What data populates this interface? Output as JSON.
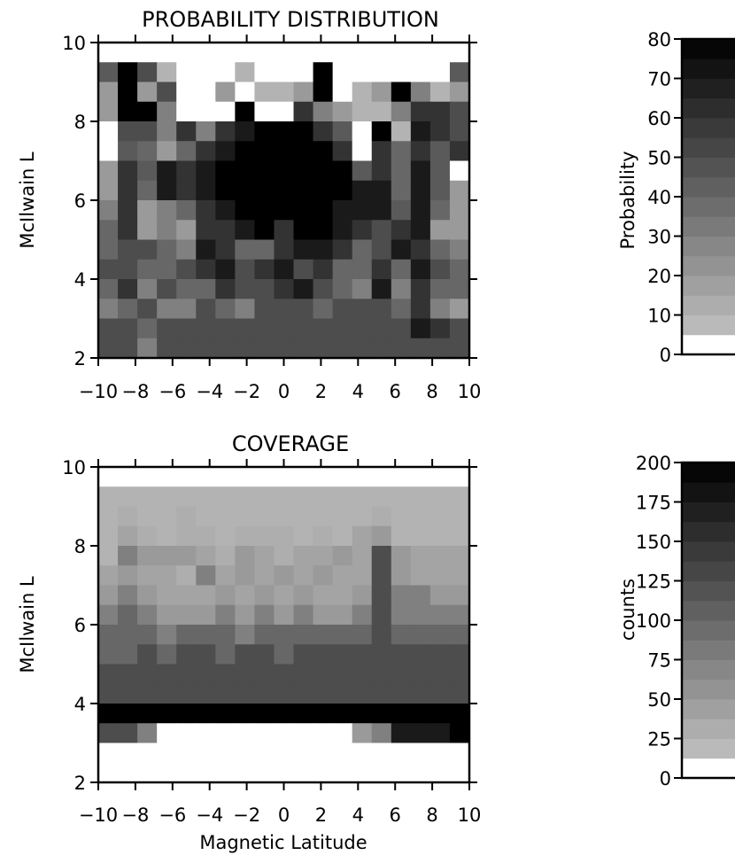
{
  "chart_data": [
    {
      "type": "heatmap",
      "title": "PROBABILITY DISTRIBUTION",
      "xlabel": "",
      "ylabel": "McIlwain L",
      "xlim": [
        -10,
        10
      ],
      "ylim": [
        2,
        10
      ],
      "x_ticks": [
        "-10",
        "-8",
        "-6",
        "-4",
        "-2",
        "0",
        "2",
        "4",
        "6",
        "8",
        "10"
      ],
      "y_ticks": [
        "2",
        "4",
        "6",
        "8",
        "10"
      ],
      "x_bin_edges": [
        -10,
        10
      ],
      "x_bins": 19,
      "y_bin_edges": [
        2,
        9.5
      ],
      "y_bins": 15,
      "grid": [
        [
          45,
          80,
          50,
          10,
          0,
          0,
          0,
          10,
          0,
          0,
          0,
          80,
          0,
          0,
          0,
          0,
          0,
          0,
          45
        ],
        [
          20,
          80,
          20,
          50,
          0,
          0,
          20,
          0,
          10,
          10,
          20,
          80,
          0,
          10,
          20,
          80,
          30,
          10,
          20
        ],
        [
          20,
          80,
          80,
          30,
          0,
          0,
          0,
          80,
          0,
          0,
          60,
          30,
          20,
          10,
          10,
          30,
          60,
          60,
          50
        ],
        [
          0,
          50,
          50,
          30,
          60,
          30,
          60,
          70,
          80,
          80,
          80,
          60,
          45,
          0,
          80,
          10,
          70,
          60,
          50
        ],
        [
          0,
          45,
          40,
          20,
          40,
          60,
          70,
          80,
          80,
          80,
          80,
          80,
          60,
          0,
          60,
          40,
          60,
          45,
          60
        ],
        [
          20,
          60,
          45,
          70,
          60,
          70,
          80,
          80,
          80,
          80,
          80,
          80,
          80,
          45,
          60,
          40,
          70,
          45,
          0
        ],
        [
          20,
          60,
          40,
          70,
          60,
          70,
          80,
          80,
          80,
          80,
          80,
          80,
          80,
          70,
          70,
          40,
          70,
          45,
          20
        ],
        [
          30,
          60,
          20,
          30,
          40,
          60,
          70,
          80,
          80,
          80,
          80,
          80,
          70,
          70,
          70,
          45,
          70,
          40,
          20
        ],
        [
          40,
          60,
          20,
          30,
          20,
          60,
          60,
          70,
          80,
          60,
          80,
          80,
          70,
          60,
          50,
          60,
          70,
          20,
          20
        ],
        [
          40,
          50,
          50,
          40,
          30,
          70,
          60,
          40,
          40,
          60,
          70,
          70,
          60,
          40,
          50,
          70,
          60,
          40,
          30
        ],
        [
          50,
          50,
          40,
          40,
          50,
          60,
          70,
          50,
          60,
          70,
          50,
          60,
          40,
          40,
          60,
          40,
          70,
          50,
          40
        ],
        [
          40,
          60,
          30,
          50,
          40,
          40,
          60,
          50,
          50,
          60,
          70,
          50,
          40,
          30,
          70,
          30,
          60,
          40,
          40
        ],
        [
          30,
          40,
          50,
          30,
          30,
          50,
          40,
          30,
          50,
          50,
          50,
          40,
          50,
          50,
          50,
          40,
          60,
          30,
          20
        ],
        [
          50,
          50,
          40,
          50,
          50,
          50,
          50,
          50,
          50,
          50,
          50,
          50,
          50,
          50,
          50,
          50,
          70,
          60,
          50
        ],
        [
          50,
          50,
          30,
          50,
          50,
          50,
          50,
          50,
          50,
          50,
          50,
          50,
          50,
          50,
          50,
          50,
          50,
          50,
          50
        ]
      ],
      "colorbar": {
        "label": "Probability",
        "ticks": [
          "0",
          "10",
          "20",
          "30",
          "40",
          "50",
          "60",
          "70",
          "80"
        ],
        "range": [
          0,
          80
        ],
        "levels": [
          0,
          5,
          10,
          15,
          20,
          25,
          30,
          35,
          40,
          45,
          50,
          55,
          60,
          65,
          70,
          75,
          80
        ]
      }
    },
    {
      "type": "heatmap",
      "title": "COVERAGE",
      "xlabel": "Magnetic Latitude",
      "ylabel": "McIlwain L",
      "xlim": [
        -10,
        10
      ],
      "ylim": [
        2,
        10
      ],
      "x_ticks": [
        "-10",
        "-8",
        "-6",
        "-4",
        "-2",
        "0",
        "2",
        "4",
        "6",
        "8",
        "10"
      ],
      "y_ticks": [
        "2",
        "4",
        "6",
        "8",
        "10"
      ],
      "x_bin_edges": [
        -10,
        10
      ],
      "x_bins": 19,
      "y_bin_edges": [
        2.5,
        9.5
      ],
      "y_bins": 14,
      "grid": [
        [
          25,
          25,
          25,
          25,
          25,
          25,
          25,
          25,
          25,
          25,
          25,
          25,
          25,
          25,
          25,
          25,
          25,
          25,
          25
        ],
        [
          25,
          30,
          25,
          25,
          30,
          25,
          25,
          25,
          25,
          25,
          25,
          25,
          25,
          25,
          30,
          25,
          25,
          25,
          25
        ],
        [
          25,
          40,
          30,
          25,
          30,
          30,
          25,
          30,
          30,
          30,
          25,
          30,
          25,
          40,
          50,
          25,
          25,
          25,
          25
        ],
        [
          25,
          75,
          50,
          50,
          50,
          40,
          30,
          50,
          40,
          30,
          40,
          40,
          50,
          40,
          125,
          50,
          40,
          40,
          40
        ],
        [
          40,
          50,
          40,
          40,
          30,
          75,
          40,
          50,
          40,
          50,
          40,
          50,
          40,
          40,
          125,
          50,
          40,
          40,
          40
        ],
        [
          50,
          75,
          50,
          40,
          40,
          40,
          50,
          40,
          50,
          40,
          50,
          40,
          40,
          50,
          125,
          75,
          75,
          50,
          50
        ],
        [
          75,
          100,
          75,
          50,
          50,
          50,
          75,
          50,
          75,
          50,
          75,
          50,
          50,
          75,
          125,
          75,
          75,
          75,
          75
        ],
        [
          100,
          100,
          100,
          75,
          100,
          100,
          100,
          75,
          100,
          100,
          100,
          100,
          100,
          100,
          125,
          100,
          100,
          100,
          100
        ],
        [
          100,
          100,
          125,
          100,
          125,
          125,
          100,
          125,
          125,
          100,
          125,
          125,
          125,
          125,
          125,
          125,
          125,
          125,
          125
        ],
        [
          125,
          125,
          125,
          125,
          125,
          125,
          125,
          125,
          125,
          125,
          125,
          125,
          125,
          125,
          125,
          125,
          125,
          125,
          125
        ],
        [
          125,
          125,
          125,
          125,
          125,
          125,
          125,
          125,
          125,
          125,
          125,
          125,
          125,
          125,
          125,
          125,
          125,
          125,
          125
        ],
        [
          200,
          200,
          200,
          200,
          200,
          200,
          200,
          200,
          200,
          200,
          200,
          200,
          200,
          200,
          200,
          200,
          200,
          200,
          200
        ],
        [
          125,
          125,
          75,
          0,
          0,
          0,
          0,
          0,
          0,
          0,
          0,
          0,
          0,
          50,
          75,
          175,
          175,
          175,
          200
        ],
        [
          0,
          0,
          0,
          0,
          0,
          0,
          0,
          0,
          0,
          0,
          0,
          0,
          0,
          0,
          0,
          0,
          0,
          0,
          0
        ]
      ],
      "colorbar": {
        "label": "counts",
        "ticks": [
          "0",
          "25",
          "50",
          "75",
          "100",
          "125",
          "150",
          "175",
          "200"
        ],
        "range": [
          0,
          200
        ],
        "levels": [
          0,
          12.5,
          25,
          37.5,
          50,
          62.5,
          75,
          87.5,
          100,
          112.5,
          125,
          137.5,
          150,
          162.5,
          175,
          187.5,
          200
        ]
      }
    }
  ]
}
